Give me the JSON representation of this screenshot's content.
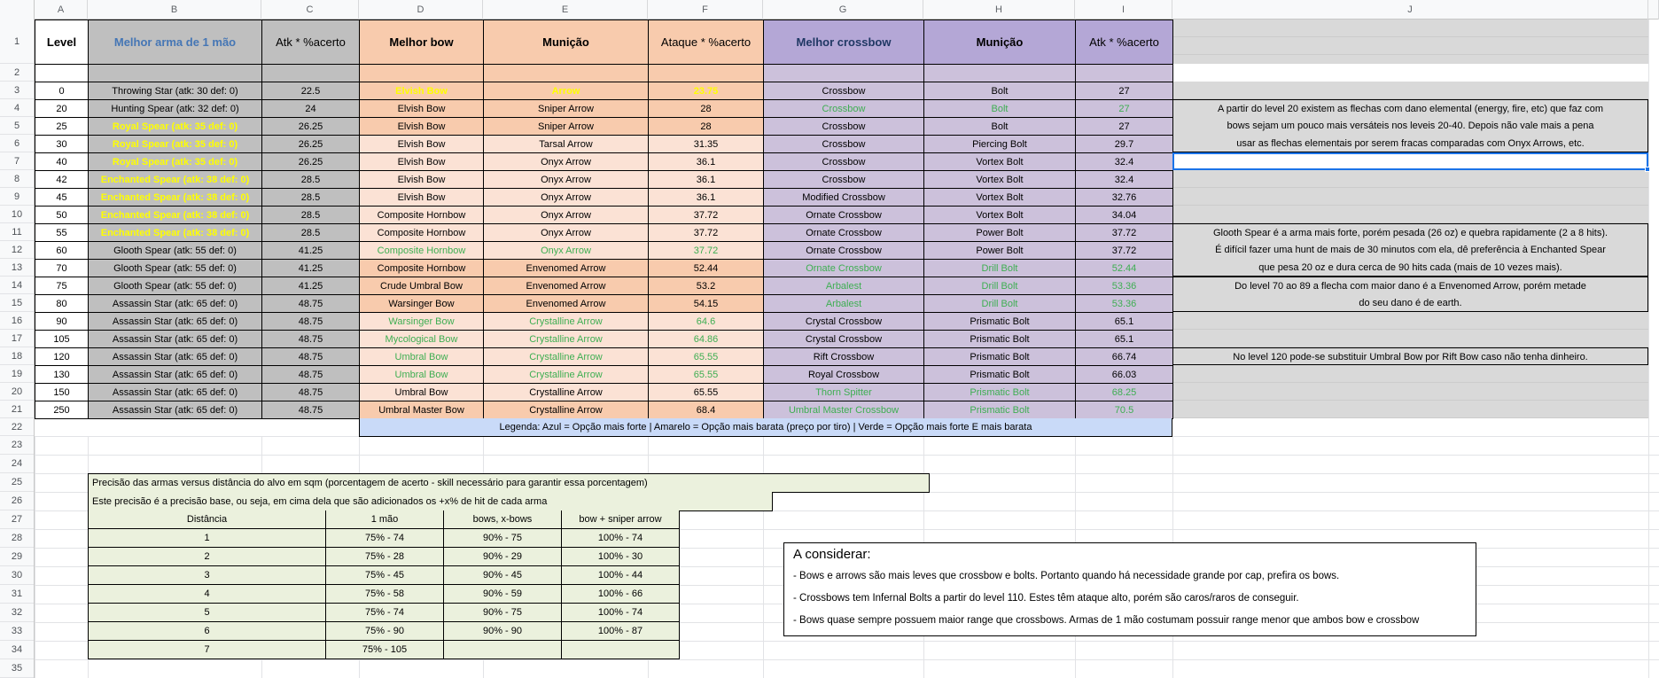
{
  "sheet": {
    "col_letters": [
      "A",
      "B",
      "C",
      "D",
      "E",
      "F",
      "G",
      "H",
      "I",
      "J"
    ],
    "row_numbers": [
      1,
      2,
      3,
      4,
      5,
      6,
      7,
      8,
      9,
      10,
      11,
      12,
      13,
      14,
      15,
      16,
      17,
      18,
      19,
      20,
      21,
      22,
      23,
      24,
      25,
      26,
      27,
      28,
      29,
      30,
      31,
      32,
      33,
      34,
      35
    ]
  },
  "colors": {
    "onehand_gray": "#bfbfbf",
    "bow_header_peach": "#f8cbad",
    "bow_light_peach": "#fbe2d5",
    "crossbow_header_purple": "#b4a7d6",
    "crossbow_light_purple": "#ccc1db",
    "notes_gray": "#d9d9d9",
    "legend_blue": "#c9daf8",
    "accuracy_green": "#ebf1dd",
    "text_yellow": "#ffff00",
    "text_blue_bow": "#3fa3e8",
    "text_blue_crossbow": "#7b96ea",
    "text_green": "#3eae52",
    "selection_blue": "#1a73e8",
    "header_text_blue": "#4576b5",
    "crossbow_header_text_navy": "#203864"
  },
  "main_table": {
    "headers": {
      "level": "Level",
      "one_hand": "Melhor arma de 1 mão",
      "atk1": "Atk * %acerto",
      "bow": "Melhor bow",
      "ammo_bow": "Munição",
      "atk2": "Ataque * %acerto",
      "crossbow": "Melhor crossbow",
      "ammo_xbow": "Munição",
      "atk3": "Atk * %acerto"
    },
    "rows": [
      {
        "level": "0",
        "one_hand": "Throwing Star (atk: 30 def: 0)",
        "one_hand_color": "black",
        "atk1": "22.5",
        "bow": "Elvish Bow",
        "bow_color": "yellow",
        "ammo_bow": "Arrow",
        "ammo_bow_color": "yellow",
        "atk2": "23.75",
        "atk2_color": "yellow",
        "crossbow": "Crossbow",
        "crossbow_color": "blue",
        "ammo_xbow": "Bolt",
        "ammo_xbow_color": "blue",
        "atk3": "27",
        "atk3_color": "blue",
        "def_shade": "dark"
      },
      {
        "level": "20",
        "one_hand": "Hunting Spear (atk: 32 def: 0)",
        "one_hand_color": "black",
        "atk1": "24",
        "bow": "Elvish Bow",
        "bow_color": "black",
        "ammo_bow": "Sniper Arrow",
        "ammo_bow_color": "black",
        "atk2": "28",
        "atk2_color": "black",
        "crossbow": "Crossbow",
        "crossbow_color": "green",
        "ammo_xbow": "Bolt",
        "ammo_xbow_color": "green",
        "atk3": "27",
        "atk3_color": "green",
        "def_shade": "dark"
      },
      {
        "level": "25",
        "one_hand": "Royal Spear (atk: 35 def: 0)",
        "one_hand_color": "yellow",
        "atk1": "26.25",
        "bow": "Elvish Bow",
        "bow_color": "black",
        "ammo_bow": "Sniper Arrow",
        "ammo_bow_color": "black",
        "atk2": "28",
        "atk2_color": "black",
        "crossbow": "Crossbow",
        "crossbow_color": "blue",
        "ammo_xbow": "Bolt",
        "ammo_xbow_color": "blue",
        "atk3": "27",
        "atk3_color": "blue",
        "def_shade": "dark"
      },
      {
        "level": "30",
        "one_hand": "Royal Spear (atk: 35 def: 0)",
        "one_hand_color": "yellow",
        "atk1": "26.25",
        "bow": "Elvish Bow",
        "bow_color": "blue",
        "ammo_bow": "Tarsal Arrow",
        "ammo_bow_color": "blue",
        "atk2": "31.35",
        "atk2_color": "blue",
        "crossbow": "Crossbow",
        "crossbow_color": "black",
        "ammo_xbow": "Piercing Bolt",
        "ammo_xbow_color": "black",
        "atk3": "29.7",
        "atk3_color": "black",
        "def_shade": "light"
      },
      {
        "level": "40",
        "one_hand": "Royal Spear (atk: 35 def: 0)",
        "one_hand_color": "yellow",
        "atk1": "26.25",
        "bow": "Elvish Bow",
        "bow_color": "blue",
        "ammo_bow": "Onyx Arrow",
        "ammo_bow_color": "blue",
        "atk2": "36.1",
        "atk2_color": "blue",
        "crossbow": "Crossbow",
        "crossbow_color": "black",
        "ammo_xbow": "Vortex Bolt",
        "ammo_xbow_color": "black",
        "atk3": "32.4",
        "atk3_color": "black",
        "def_shade": "light"
      },
      {
        "level": "42",
        "one_hand": "Enchanted Spear (atk: 38 def: 0)",
        "one_hand_color": "yellow",
        "atk1": "28.5",
        "bow": "Elvish Bow",
        "bow_color": "blue",
        "ammo_bow": "Onyx Arrow",
        "ammo_bow_color": "blue",
        "atk2": "36.1",
        "atk2_color": "blue",
        "crossbow": "Crossbow",
        "crossbow_color": "black",
        "ammo_xbow": "Vortex Bolt",
        "ammo_xbow_color": "black",
        "atk3": "32.4",
        "atk3_color": "black",
        "def_shade": "light"
      },
      {
        "level": "45",
        "one_hand": "Enchanted Spear (atk: 38 def: 0)",
        "one_hand_color": "yellow",
        "atk1": "28.5",
        "bow": "Elvish Bow",
        "bow_color": "blue",
        "ammo_bow": "Onyx Arrow",
        "ammo_bow_color": "blue",
        "atk2": "36.1",
        "atk2_color": "blue",
        "crossbow": "Modified Crossbow",
        "crossbow_color": "black",
        "ammo_xbow": "Vortex Bolt",
        "ammo_xbow_color": "black",
        "atk3": "32.76",
        "atk3_color": "black",
        "def_shade": "light"
      },
      {
        "level": "50",
        "one_hand": "Enchanted Spear (atk: 38 def: 0)",
        "one_hand_color": "yellow",
        "atk1": "28.5",
        "bow": "Composite Hornbow",
        "bow_color": "blue",
        "ammo_bow": "Onyx Arrow",
        "ammo_bow_color": "blue",
        "atk2": "37.72",
        "atk2_color": "blue",
        "crossbow": "Ornate Crossbow",
        "crossbow_color": "black",
        "ammo_xbow": "Vortex Bolt",
        "ammo_xbow_color": "black",
        "atk3": "34.04",
        "atk3_color": "black",
        "def_shade": "light"
      },
      {
        "level": "55",
        "one_hand": "Enchanted Spear (atk: 38 def: 0)",
        "one_hand_color": "yellow",
        "atk1": "28.5",
        "bow": "Composite Hornbow",
        "bow_color": "blue",
        "ammo_bow": "Onyx Arrow",
        "ammo_bow_color": "blue",
        "atk2": "37.72",
        "atk2_color": "blue",
        "crossbow": "Ornate Crossbow",
        "crossbow_color": "black",
        "ammo_xbow": "Power Bolt",
        "ammo_xbow_color": "black",
        "atk3": "37.72",
        "atk3_color": "black",
        "def_shade": "light"
      },
      {
        "level": "60",
        "one_hand": "Glooth Spear (atk: 55 def: 0)",
        "one_hand_color": "black",
        "atk1": "41.25",
        "bow": "Composite Hornbow",
        "bow_color": "green",
        "ammo_bow": "Onyx Arrow",
        "ammo_bow_color": "green",
        "atk2": "37.72",
        "atk2_color": "green",
        "crossbow": "Ornate Crossbow",
        "crossbow_color": "black",
        "ammo_xbow": "Power Bolt",
        "ammo_xbow_color": "black",
        "atk3": "37.72",
        "atk3_color": "black",
        "def_shade": "light"
      },
      {
        "level": "70",
        "one_hand": "Glooth Spear (atk: 55 def: 0)",
        "one_hand_color": "black",
        "atk1": "41.25",
        "bow": "Composite Hornbow",
        "bow_color": "black",
        "ammo_bow": "Envenomed Arrow",
        "ammo_bow_color": "black",
        "atk2": "52.44",
        "atk2_color": "black",
        "crossbow": "Ornate Crossbow",
        "crossbow_color": "green",
        "ammo_xbow": "Drill Bolt",
        "ammo_xbow_color": "green",
        "atk3": "52.44",
        "atk3_color": "green",
        "def_shade": "dark"
      },
      {
        "level": "75",
        "one_hand": "Glooth Spear (atk: 55 def: 0)",
        "one_hand_color": "black",
        "atk1": "41.25",
        "bow": "Crude Umbral Bow",
        "bow_color": "black",
        "ammo_bow": "Envenomed Arrow",
        "ammo_bow_color": "black",
        "atk2": "53.2",
        "atk2_color": "black",
        "crossbow": "Arbalest",
        "crossbow_color": "green",
        "ammo_xbow": "Drill Bolt",
        "ammo_xbow_color": "green",
        "atk3": "53.36",
        "atk3_color": "green",
        "def_shade": "dark"
      },
      {
        "level": "80",
        "one_hand": "Assassin Star (atk: 65 def: 0)",
        "one_hand_color": "black",
        "atk1": "48.75",
        "bow": "Warsinger Bow",
        "bow_color": "black",
        "ammo_bow": "Envenomed Arrow",
        "ammo_bow_color": "black",
        "atk2": "54.15",
        "atk2_color": "black",
        "crossbow": "Arbalest",
        "crossbow_color": "green",
        "ammo_xbow": "Drill Bolt",
        "ammo_xbow_color": "green",
        "atk3": "53.36",
        "atk3_color": "green",
        "def_shade": "dark"
      },
      {
        "level": "90",
        "one_hand": "Assassin Star (atk: 65 def: 0)",
        "one_hand_color": "black",
        "atk1": "48.75",
        "bow": "Warsinger Bow",
        "bow_color": "green",
        "ammo_bow": "Crystalline Arrow",
        "ammo_bow_color": "green",
        "atk2": "64.6",
        "atk2_color": "green",
        "crossbow": "Crystal Crossbow",
        "crossbow_color": "black",
        "ammo_xbow": "Prismatic Bolt",
        "ammo_xbow_color": "black",
        "atk3": "65.1",
        "atk3_color": "black",
        "def_shade": "light"
      },
      {
        "level": "105",
        "one_hand": "Assassin Star (atk: 65 def: 0)",
        "one_hand_color": "black",
        "atk1": "48.75",
        "bow": "Mycological Bow",
        "bow_color": "green",
        "ammo_bow": "Crystalline Arrow",
        "ammo_bow_color": "green",
        "atk2": "64.86",
        "atk2_color": "green",
        "crossbow": "Crystal Crossbow",
        "crossbow_color": "black",
        "ammo_xbow": "Prismatic Bolt",
        "ammo_xbow_color": "black",
        "atk3": "65.1",
        "atk3_color": "black",
        "def_shade": "light"
      },
      {
        "level": "120",
        "one_hand": "Assassin Star (atk: 65 def: 0)",
        "one_hand_color": "black",
        "atk1": "48.75",
        "bow": "Umbral Bow",
        "bow_color": "green",
        "ammo_bow": "Crystalline Arrow",
        "ammo_bow_color": "green",
        "atk2": "65.55",
        "atk2_color": "green",
        "crossbow": "Rift Crossbow",
        "crossbow_color": "black",
        "ammo_xbow": "Prismatic Bolt",
        "ammo_xbow_color": "black",
        "atk3": "66.74",
        "atk3_color": "black",
        "def_shade": "light"
      },
      {
        "level": "130",
        "one_hand": "Assassin Star (atk: 65 def: 0)",
        "one_hand_color": "black",
        "atk1": "48.75",
        "bow": "Umbral Bow",
        "bow_color": "green",
        "ammo_bow": "Crystalline Arrow",
        "ammo_bow_color": "green",
        "atk2": "65.55",
        "atk2_color": "green",
        "crossbow": "Royal Crossbow",
        "crossbow_color": "black",
        "ammo_xbow": "Prismatic Bolt",
        "ammo_xbow_color": "black",
        "atk3": "66.03",
        "atk3_color": "black",
        "def_shade": "light"
      },
      {
        "level": "150",
        "one_hand": "Assassin Star (atk: 65 def: 0)",
        "one_hand_color": "black",
        "atk1": "48.75",
        "bow": "Umbral Bow",
        "bow_color": "black",
        "ammo_bow": "Crystalline Arrow",
        "ammo_bow_color": "black",
        "atk2": "65.55",
        "atk2_color": "black",
        "crossbow": "Thorn Spitter",
        "crossbow_color": "green",
        "ammo_xbow": "Prismatic Bolt",
        "ammo_xbow_color": "green",
        "atk3": "68.25",
        "atk3_color": "green",
        "def_shade": "light"
      },
      {
        "level": "250",
        "one_hand": "Assassin Star (atk: 65 def: 0)",
        "one_hand_color": "black",
        "atk1": "48.75",
        "bow": "Umbral Master Bow",
        "bow_color": "black",
        "ammo_bow": "Crystalline Arrow",
        "ammo_bow_color": "black",
        "atk2": "68.4",
        "atk2_color": "black",
        "crossbow": "Umbral Master Crossbow",
        "crossbow_color": "green",
        "ammo_xbow": "Prismatic Bolt",
        "ammo_xbow_color": "green",
        "atk3": "70.5",
        "atk3_color": "green",
        "def_shade": "dark"
      }
    ],
    "legend": "Legenda: Azul = Opção mais forte | Amarelo = Opção mais barata (preço por tiro) | Verde = Opção mais forte E mais barata"
  },
  "notes": {
    "elemental": [
      "A partir do level 20 existem as flechas com dano elemental (energy, fire, etc) que faz com",
      "bows sejam um pouco mais versáteis nos leveis 20-40. Depois não vale mais a pena",
      "usar as flechas elementais por serem fracas comparadas com Onyx Arrows, etc."
    ],
    "glooth": [
      "Glooth Spear é a arma mais forte, porém pesada (26 oz) e quebra rapidamente (2 a 8 hits).",
      "É difícil fazer uma hunt de mais de 30 minutos com ela, dê preferência à Enchanted Spear",
      "que pesa 20 oz e dura cerca de 90 hits cada (mais de 10 vezes mais)."
    ],
    "envenomed": [
      "Do level 70 ao 89 a flecha com maior dano é a Envenomed Arrow, porém metade",
      "do seu dano é de earth."
    ],
    "rift": [
      "No level 120 pode-se substituir Umbral Bow por Rift Bow caso não tenha dinheiro."
    ]
  },
  "accuracy": {
    "title1": "Precisão das armas versus distância do alvo em sqm (porcentagem de acerto - skill necessário para garantir essa porcentagem)",
    "title2": "Este precisão é a precisão base, ou seja, em cima dela que são adicionados os +x% de hit de cada arma",
    "headers": [
      "Distância",
      "1 mão",
      "bows, x-bows",
      "bow + sniper arrow"
    ],
    "rows": [
      [
        "1",
        "75% - 74",
        "90% - 75",
        "100% - 74"
      ],
      [
        "2",
        "75% - 28",
        "90% - 29",
        "100% - 30"
      ],
      [
        "3",
        "75% - 45",
        "90% - 45",
        "100% - 44"
      ],
      [
        "4",
        "75% - 58",
        "90% - 59",
        "100% - 66"
      ],
      [
        "5",
        "75% - 74",
        "90% - 75",
        "100% - 74"
      ],
      [
        "6",
        "75% - 90",
        "90% - 90",
        "100% - 87"
      ],
      [
        "7",
        "75% - 105",
        "",
        ""
      ]
    ]
  },
  "considerar": {
    "title": "A considerar:",
    "bullets": [
      "- Bows e arrows são mais leves que crossbow e bolts. Portanto quando há necessidade grande por cap, prefira os bows.",
      "- Crossbows tem Infernal Bolts a partir do level 110. Estes têm ataque alto, porém são caros/raros de conseguir.",
      "- Bows quase sempre possuem maior range que crossbows. Armas de 1 mão costumam possuir range menor que ambos bow e crossbow"
    ]
  }
}
